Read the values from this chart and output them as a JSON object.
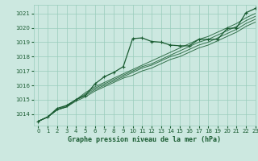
{
  "title": "Graphe pression niveau de la mer (hPa)",
  "bg_color": "#cce8e0",
  "grid_color": "#99ccbb",
  "line_color": "#1a5c32",
  "xlim": [
    -0.5,
    23
  ],
  "ylim": [
    1013.2,
    1021.6
  ],
  "yticks": [
    1014,
    1015,
    1016,
    1017,
    1018,
    1019,
    1020,
    1021
  ],
  "xticks": [
    0,
    1,
    2,
    3,
    4,
    5,
    6,
    7,
    8,
    9,
    10,
    11,
    12,
    13,
    14,
    15,
    16,
    17,
    18,
    19,
    20,
    21,
    22,
    23
  ],
  "band_series": [
    [
      1013.5,
      1013.8,
      1014.3,
      1014.5,
      1014.9,
      1015.2,
      1015.6,
      1015.9,
      1016.2,
      1016.5,
      1016.7,
      1017.0,
      1017.2,
      1017.5,
      1017.8,
      1018.0,
      1018.3,
      1018.6,
      1018.8,
      1019.1,
      1019.4,
      1019.7,
      1020.1,
      1020.4
    ],
    [
      1013.5,
      1013.8,
      1014.3,
      1014.5,
      1015.0,
      1015.3,
      1015.7,
      1016.0,
      1016.3,
      1016.6,
      1016.9,
      1017.2,
      1017.4,
      1017.7,
      1018.0,
      1018.2,
      1018.5,
      1018.8,
      1019.0,
      1019.3,
      1019.6,
      1019.9,
      1020.3,
      1020.6
    ],
    [
      1013.5,
      1013.8,
      1014.3,
      1014.5,
      1015.0,
      1015.4,
      1015.8,
      1016.1,
      1016.4,
      1016.7,
      1017.0,
      1017.3,
      1017.5,
      1017.8,
      1018.1,
      1018.4,
      1018.7,
      1019.0,
      1019.2,
      1019.5,
      1019.8,
      1020.1,
      1020.5,
      1020.8
    ],
    [
      1013.5,
      1013.8,
      1014.3,
      1014.6,
      1015.0,
      1015.5,
      1015.9,
      1016.2,
      1016.5,
      1016.8,
      1017.1,
      1017.4,
      1017.7,
      1018.0,
      1018.3,
      1018.6,
      1018.9,
      1019.2,
      1019.4,
      1019.7,
      1020.0,
      1020.3,
      1020.7,
      1021.0
    ]
  ],
  "main_series": [
    1013.5,
    1013.8,
    1014.4,
    1014.6,
    1015.0,
    1015.3,
    1016.1,
    1016.6,
    1016.9,
    1017.3,
    1019.25,
    1019.3,
    1019.05,
    1019.0,
    1018.8,
    1018.75,
    1018.75,
    1019.2,
    1019.2,
    1019.2,
    1019.95,
    1020.0,
    1021.05,
    1021.35
  ]
}
